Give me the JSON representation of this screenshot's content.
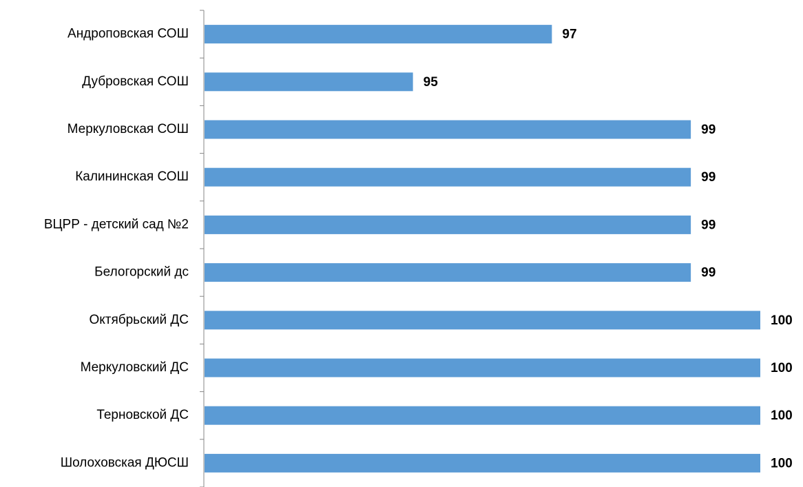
{
  "chart_data": {
    "type": "barh",
    "categories": [
      "Андроповская СОШ",
      "Дубровская СОШ",
      "Меркуловская СОШ",
      "Калининская СОШ",
      "ВЦРР - детский сад №2",
      "Белогорский дс",
      "Октябрьский ДС",
      "Меркуловский ДС",
      "Терновской ДС",
      "Шолоховская ДЮСШ"
    ],
    "values": [
      97,
      95,
      99,
      99,
      99,
      99,
      100,
      100,
      100,
      100
    ],
    "color": "#5b9bd5",
    "xlim": [
      92,
      100
    ]
  }
}
